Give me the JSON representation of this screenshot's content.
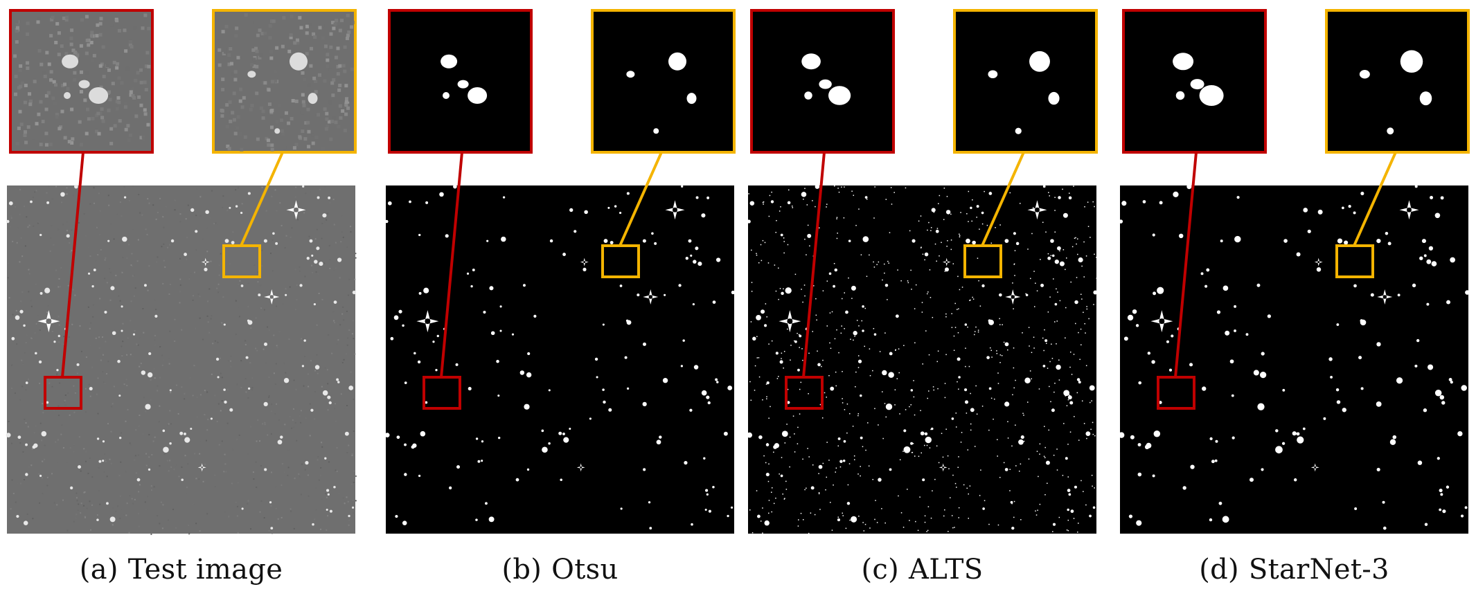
{
  "figure": {
    "colors": {
      "red": "#c00000",
      "gold": "#f4b400",
      "gray_bg": "#6f6f6f",
      "black_bg": "#000000"
    },
    "panels": [
      {
        "id": "a",
        "prefix": "(a)",
        "label": "Test image",
        "style": "gray"
      },
      {
        "id": "b",
        "prefix": "(b)",
        "label": "Otsu",
        "style": "binary"
      },
      {
        "id": "c",
        "prefix": "(c)",
        "label": "ALTS",
        "style": "binary-noisy"
      },
      {
        "id": "d",
        "prefix": "(d)",
        "label": "StarNet-3",
        "style": "binary-clean"
      }
    ]
  }
}
